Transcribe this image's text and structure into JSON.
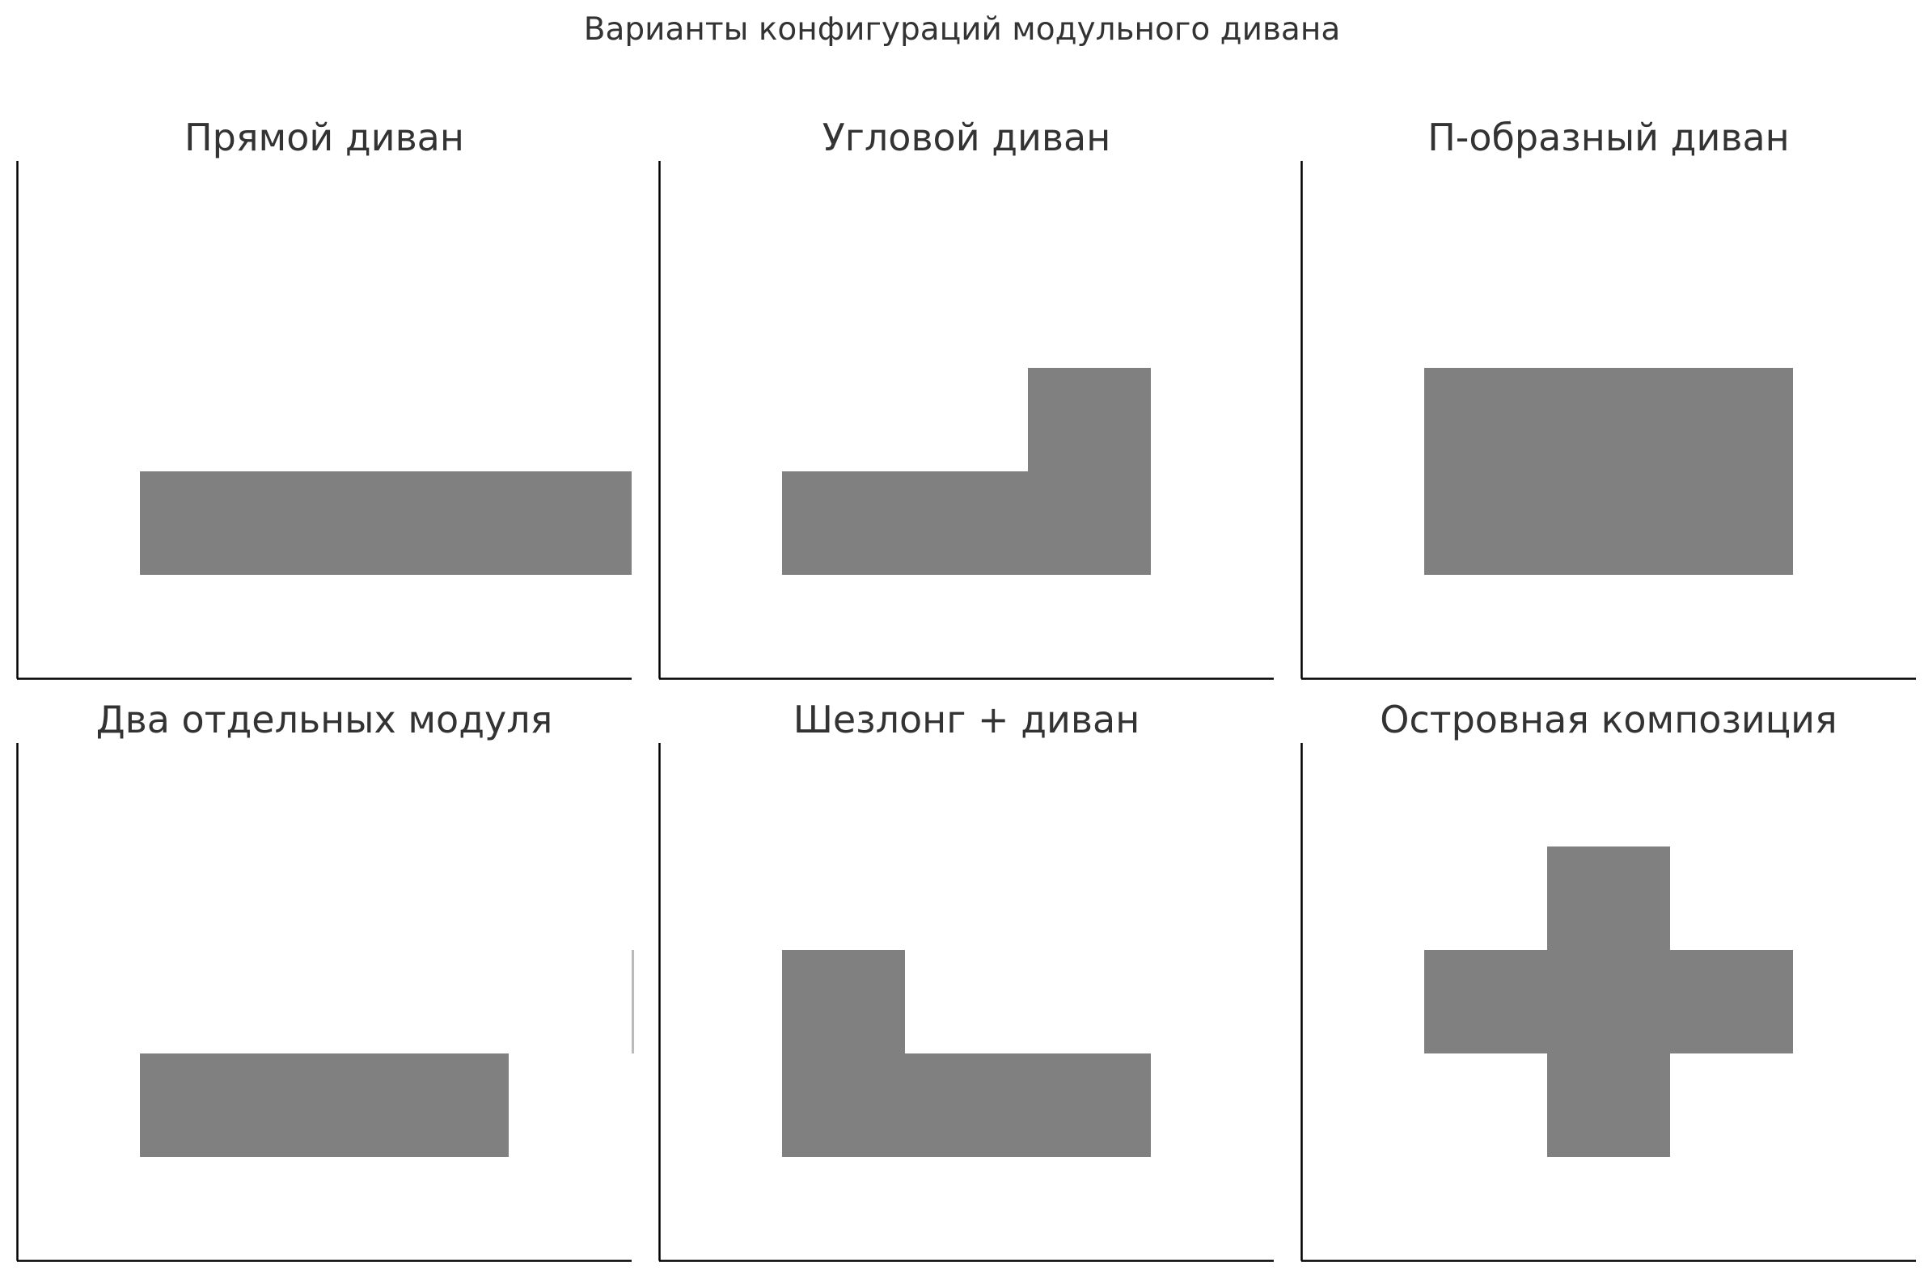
{
  "figure": {
    "title": "Варианты конфигураций модульного дивана",
    "colors": {
      "module": "#808080",
      "axis": "#000000",
      "text": "#333333",
      "background": "#ffffff"
    }
  },
  "chart_data": [
    {
      "type": "diagram",
      "title": "Прямой диван",
      "xlim": [
        0,
        5
      ],
      "ylim": [
        0,
        5
      ],
      "modules": [
        {
          "x": 1,
          "y": 1,
          "w": 4,
          "h": 1
        }
      ]
    },
    {
      "type": "diagram",
      "title": "Угловой диван",
      "xlim": [
        0,
        5
      ],
      "ylim": [
        0,
        5
      ],
      "modules": [
        {
          "x": 1,
          "y": 1,
          "w": 3,
          "h": 1
        },
        {
          "x": 3,
          "y": 1,
          "w": 1,
          "h": 2
        }
      ]
    },
    {
      "type": "diagram",
      "title": "П-образный диван",
      "xlim": [
        0,
        5
      ],
      "ylim": [
        0,
        5
      ],
      "modules": [
        {
          "x": 1,
          "y": 1,
          "w": 3,
          "h": 1
        },
        {
          "x": 1,
          "y": 2,
          "w": 3,
          "h": 1
        }
      ]
    },
    {
      "type": "diagram",
      "title": "Два отдельных модуля",
      "xlim": [
        0,
        5
      ],
      "ylim": [
        0,
        5
      ],
      "modules": [
        {
          "x": 1,
          "y": 1,
          "w": 3,
          "h": 1
        },
        {
          "x": 5,
          "y": 2,
          "w": 0.02,
          "h": 1,
          "outline_only": true
        }
      ]
    },
    {
      "type": "diagram",
      "title": "Шезлонг + диван",
      "xlim": [
        0,
        5
      ],
      "ylim": [
        0,
        5
      ],
      "modules": [
        {
          "x": 1,
          "y": 1,
          "w": 3,
          "h": 1
        },
        {
          "x": 1,
          "y": 2,
          "w": 1,
          "h": 1
        }
      ]
    },
    {
      "type": "diagram",
      "title": "Островная композиция",
      "xlim": [
        0,
        5
      ],
      "ylim": [
        0,
        5
      ],
      "modules": [
        {
          "x": 1,
          "y": 2,
          "w": 3,
          "h": 1
        },
        {
          "x": 2,
          "y": 1,
          "w": 1,
          "h": 3
        }
      ]
    }
  ]
}
